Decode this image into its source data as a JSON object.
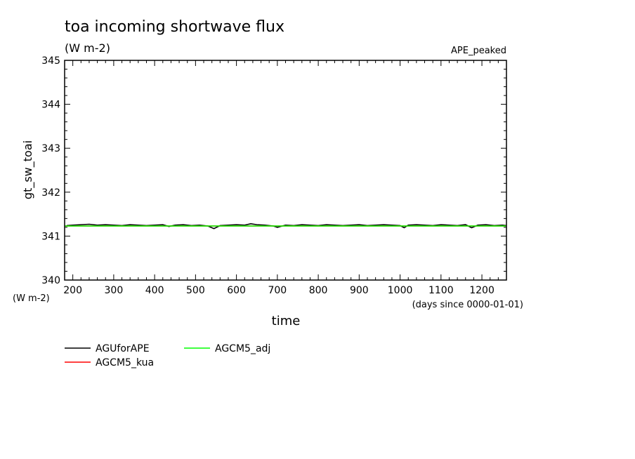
{
  "chart_data": {
    "type": "line",
    "title": "toa incoming shortwave flux",
    "units": "(W m-2)",
    "experiment": "APE_peaked",
    "xlabel": "time",
    "xunits": "(days since 0000-01-01)",
    "ylabel": "gt_sw_toai",
    "yunits": "(W m-2)",
    "xlim": [
      180,
      1260
    ],
    "ylim": [
      340,
      345
    ],
    "xticks": [
      200,
      300,
      400,
      500,
      600,
      700,
      800,
      900,
      1000,
      1100,
      1200
    ],
    "yticks": [
      340,
      341,
      342,
      343,
      344,
      345
    ],
    "legend_position": "bottom",
    "series": [
      {
        "name": "AGUforAPE",
        "color": "#000000",
        "x": [
          185,
          200,
          220,
          240,
          260,
          280,
          300,
          320,
          340,
          360,
          380,
          400,
          420,
          435,
          450,
          470,
          490,
          510,
          530,
          545,
          560,
          580,
          600,
          620,
          635,
          650,
          670,
          690,
          700,
          720,
          740,
          760,
          780,
          800,
          820,
          840,
          860,
          880,
          900,
          920,
          940,
          960,
          980,
          1000,
          1010,
          1020,
          1040,
          1060,
          1080,
          1100,
          1120,
          1140,
          1160,
          1175,
          1190,
          1210,
          1230,
          1250,
          1260
        ],
        "y": [
          341.24,
          341.25,
          341.26,
          341.27,
          341.25,
          341.26,
          341.25,
          341.24,
          341.26,
          341.25,
          341.24,
          341.25,
          341.26,
          341.22,
          341.25,
          341.26,
          341.24,
          341.25,
          341.23,
          341.17,
          341.24,
          341.25,
          341.26,
          341.25,
          341.28,
          341.26,
          341.25,
          341.23,
          341.2,
          341.25,
          341.24,
          341.26,
          341.25,
          341.24,
          341.26,
          341.25,
          341.24,
          341.25,
          341.26,
          341.24,
          341.25,
          341.26,
          341.25,
          341.24,
          341.19,
          341.25,
          341.26,
          341.25,
          341.24,
          341.26,
          341.25,
          341.24,
          341.26,
          341.19,
          341.25,
          341.26,
          341.24,
          341.25,
          341.24
        ]
      },
      {
        "name": "AGCM5_kua",
        "color": "#ff0000",
        "x": [
          180,
          1260
        ],
        "y": [
          341.23,
          341.23
        ]
      },
      {
        "name": "AGCM5_adj",
        "color": "#00ff00",
        "x": [
          180,
          1260
        ],
        "y": [
          341.23,
          341.23
        ]
      }
    ]
  }
}
